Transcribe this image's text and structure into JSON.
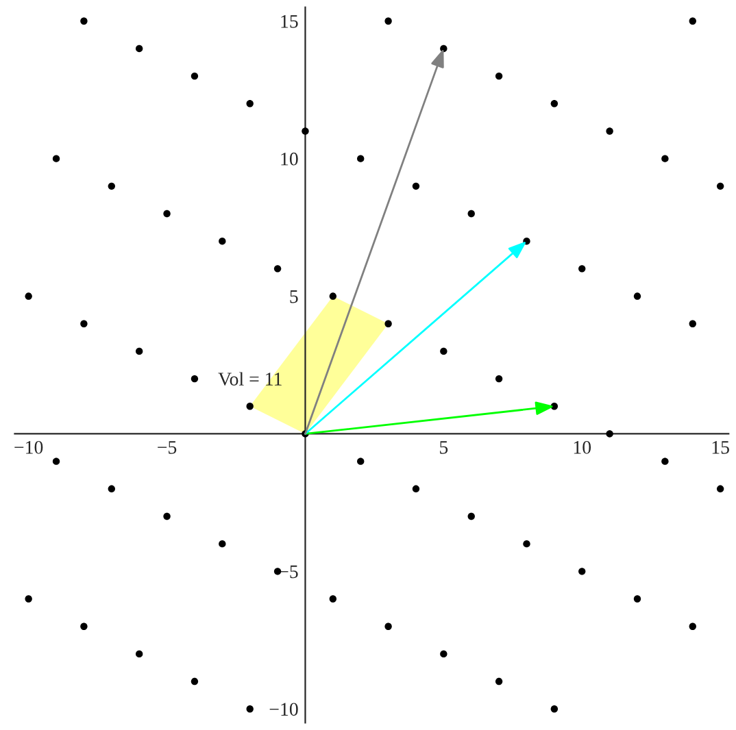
{
  "chart_data": {
    "type": "scatter",
    "xlim": [
      -10.5,
      15.3
    ],
    "ylim": [
      -10.5,
      15.5
    ],
    "xticks": [
      -10,
      -5,
      5,
      10,
      15
    ],
    "yticks": [
      -10,
      -5,
      5,
      10,
      15
    ],
    "grid": false,
    "series": [
      {
        "type": "area",
        "color": "#ffff99",
        "x": [
          0,
          -2,
          1,
          3,
          0
        ],
        "values": [
          0,
          1,
          5,
          4,
          0
        ]
      },
      {
        "marker": "circle",
        "color": "#000000",
        "x": [
          -8,
          3,
          14,
          -6,
          5,
          -4,
          7,
          -2,
          9,
          0,
          11,
          -9,
          2,
          13,
          -7,
          4,
          15,
          -5,
          6,
          -3,
          8,
          -1,
          10,
          -10,
          1,
          12,
          -8,
          3,
          14,
          -6,
          5,
          -4,
          7,
          -2,
          9,
          0,
          11,
          -9,
          2,
          13,
          -7,
          4,
          15,
          -5,
          6,
          -3,
          8,
          -1,
          10,
          -10,
          1,
          12,
          -8,
          3,
          14,
          -6,
          5,
          -4,
          7,
          -2,
          9
        ],
        "values": [
          15,
          15,
          15,
          14,
          14,
          13,
          13,
          12,
          12,
          11,
          11,
          10,
          10,
          10,
          9,
          9,
          9,
          8,
          8,
          7,
          7,
          6,
          6,
          5,
          5,
          5,
          4,
          4,
          4,
          3,
          3,
          2,
          2,
          1,
          1,
          0,
          0,
          -1,
          -1,
          -1,
          -2,
          -2,
          -2,
          -3,
          -3,
          -4,
          -4,
          -5,
          -5,
          -6,
          -6,
          -6,
          -7,
          -7,
          -7,
          -8,
          -8,
          -9,
          -9,
          -10,
          -10
        ]
      },
      {
        "type": "line",
        "color": "#00ff00",
        "x": [
          0,
          9
        ],
        "values": [
          0,
          1
        ]
      },
      {
        "type": "line",
        "color": "#00ffff",
        "x": [
          0,
          8
        ],
        "values": [
          0,
          7
        ]
      },
      {
        "type": "line",
        "color": "#808080",
        "x": [
          0,
          5
        ],
        "values": [
          0,
          14
        ]
      }
    ],
    "annotations": [
      "Vol = 11"
    ]
  }
}
